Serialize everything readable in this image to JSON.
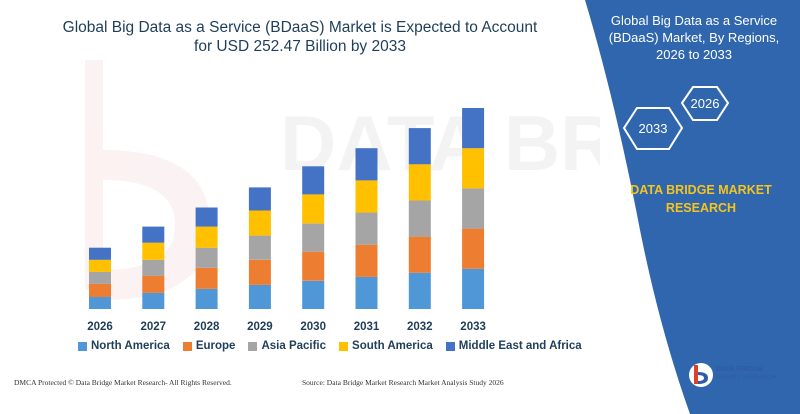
{
  "title": {
    "line1": "Global Big Data as a Service (BDaaS) Market is Expected to Account",
    "line2": "for USD 252.47 Billion by 2033"
  },
  "watermark_text": "DATA BRIDGE",
  "side_panel": {
    "title": "Global Big Data as a Service (BDaaS) Market, By Regions, 2026 to 2033",
    "hex_label_1": "2026",
    "hex_label_2": "2033",
    "brand_line1": "DATA BRIDGE MARKET",
    "brand_line2": "RESEARCH",
    "background_color": "#2f66ad"
  },
  "footer": {
    "left": "DMCA Protected © Data Bridge Market Research- All Rights Reserved.",
    "right": "Source: Data Bridge Market Research Market Analysis Study 2026"
  },
  "logo": {
    "line1": "DATA BRIDGE",
    "line2": "MARKET RESEARCH"
  },
  "chart_data": {
    "type": "bar",
    "stacked": true,
    "categories": [
      "2026",
      "2027",
      "2028",
      "2029",
      "2030",
      "2031",
      "2032",
      "2033"
    ],
    "series": [
      {
        "name": "North America",
        "color": "#4f97d6",
        "values": [
          12,
          16,
          20,
          24,
          28,
          32,
          36,
          40
        ]
      },
      {
        "name": "Europe",
        "color": "#ed7d31",
        "values": [
          13,
          17,
          21,
          25,
          29,
          32,
          36,
          40
        ]
      },
      {
        "name": "Asia Pacific",
        "color": "#a5a5a5",
        "values": [
          12,
          16,
          20,
          24,
          28,
          32,
          36,
          40
        ]
      },
      {
        "name": "South America",
        "color": "#ffc000",
        "values": [
          12,
          17,
          21,
          25,
          29,
          32,
          36,
          40
        ]
      },
      {
        "name": "Middle East and Africa",
        "color": "#4472c4",
        "values": [
          12,
          16,
          19,
          23,
          28,
          32,
          36,
          40
        ]
      }
    ],
    "ylim": [
      0,
      200
    ],
    "grid": false,
    "legend_position": "bottom"
  }
}
